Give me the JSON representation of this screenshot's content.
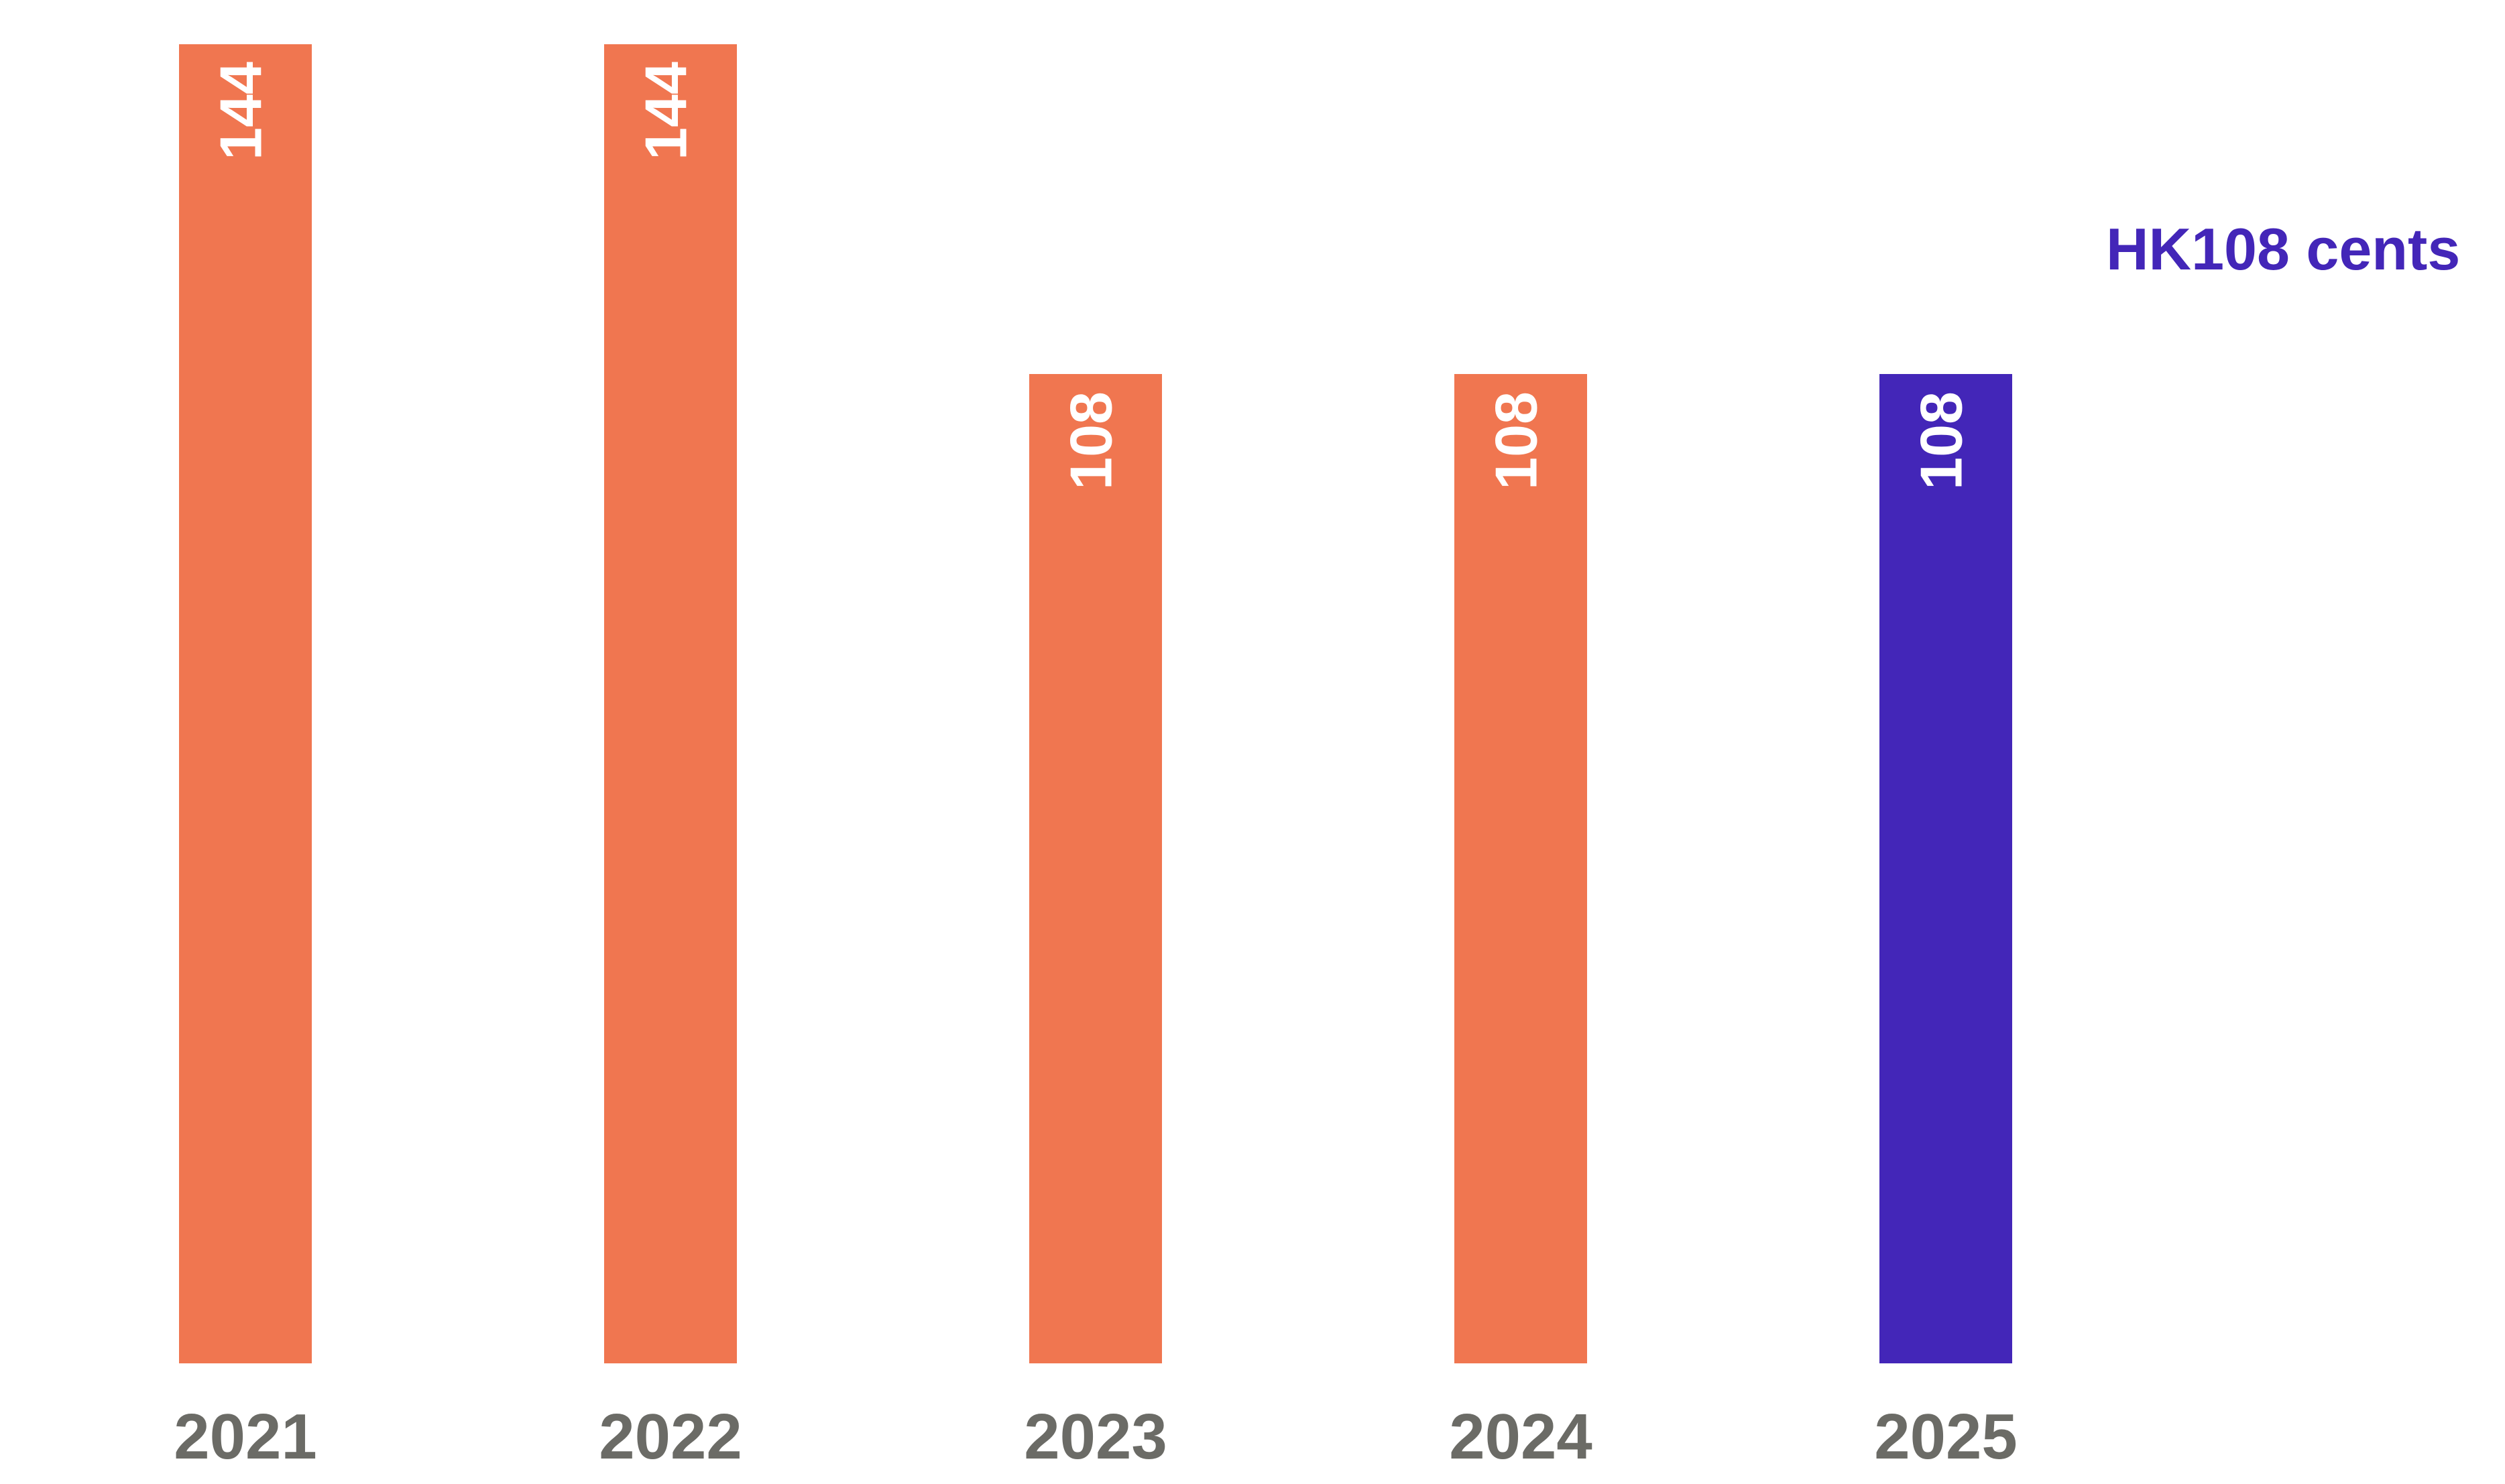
{
  "chart_data": {
    "type": "bar",
    "title": "",
    "xlabel": "",
    "ylabel": "",
    "categories": [
      "2021",
      "2022",
      "2023",
      "2024",
      "2025"
    ],
    "values": [
      144,
      144,
      108,
      108,
      108
    ],
    "value_labels": [
      "144",
      "144",
      "108",
      "108",
      "108"
    ],
    "ylim": [
      0,
      144
    ],
    "grid": false,
    "bar_colors": [
      "#f07650",
      "#f07650",
      "#f07650",
      "#f07650",
      "#4326b8"
    ],
    "value_label_color": "#ffffff",
    "tick_label_color": "#6b6b66",
    "annotation": {
      "text": "HK108 cents",
      "category": "2025",
      "color": "#4326b8"
    }
  }
}
